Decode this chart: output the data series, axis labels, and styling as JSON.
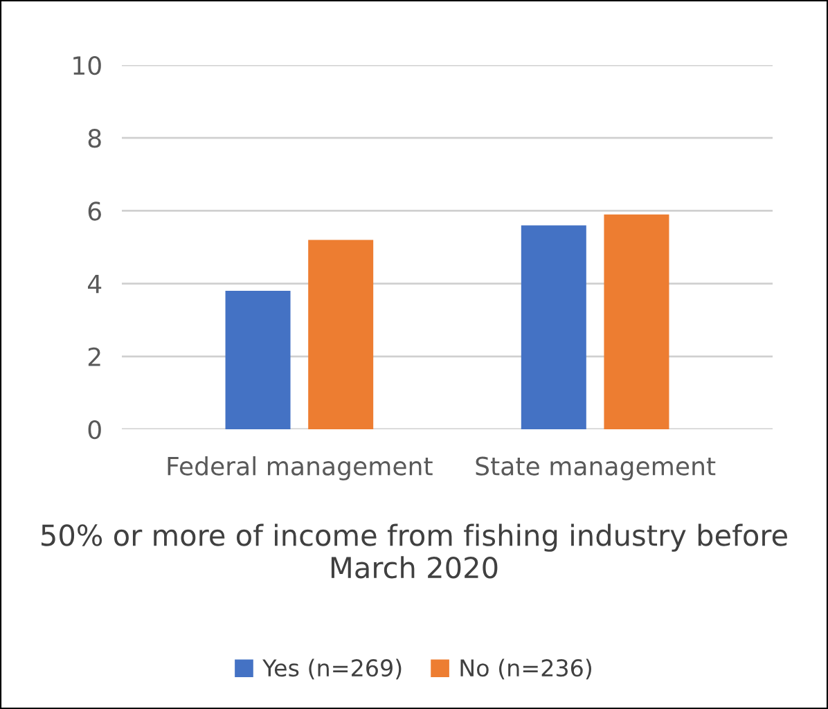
{
  "chart_data": {
    "type": "bar",
    "categories": [
      "Federal management",
      "State management"
    ],
    "series": [
      {
        "name": "Yes (n=269)",
        "color": "#4472c4",
        "values": [
          3.8,
          5.6
        ]
      },
      {
        "name": "No (n=236)",
        "color": "#ed7d31",
        "values": [
          5.2,
          5.9
        ]
      }
    ],
    "ylim": [
      0,
      10
    ],
    "yticks": [
      0,
      2,
      4,
      6,
      8,
      10
    ],
    "grid": "y",
    "legend": "bottom",
    "legend_title": "50% or more of income from fishing industry before March 2020"
  }
}
